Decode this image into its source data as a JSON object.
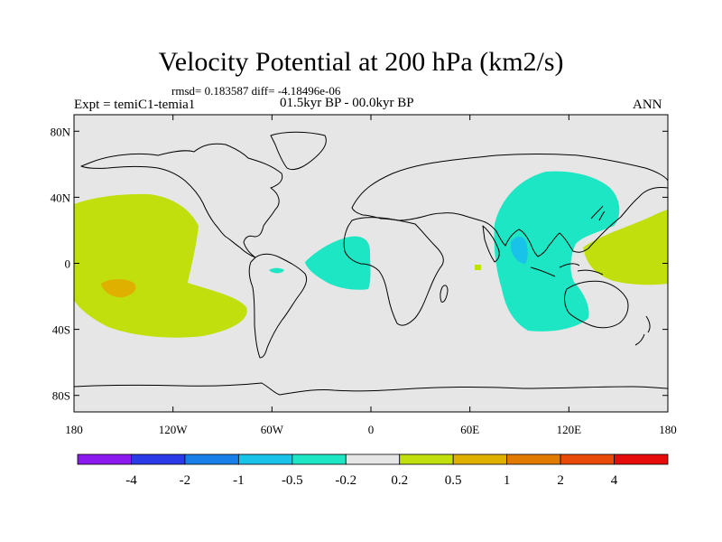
{
  "title": "Velocity Potential at 200 hPa (km2/s)",
  "stats": "rmsd= 0.183587  diff= -4.18496e-06",
  "left_label": "Expt = temiC1-temia1",
  "center_label": "01.5kyr BP - 00.0kyr BP",
  "right_label": "ANN",
  "map": {
    "projection": "cylindrical-equidistant",
    "lon_range": [
      -180,
      180
    ],
    "lat_range": [
      -90,
      90
    ],
    "background_color": "#e6e6e6",
    "x_ticks": [
      {
        "lon": -180,
        "label": "180"
      },
      {
        "lon": -120,
        "label": "120W"
      },
      {
        "lon": -60,
        "label": "60W"
      },
      {
        "lon": 0,
        "label": "0"
      },
      {
        "lon": 60,
        "label": "60E"
      },
      {
        "lon": 120,
        "label": "120E"
      },
      {
        "lon": 180,
        "label": "180"
      }
    ],
    "y_ticks": [
      {
        "lat": 80,
        "label": "80N"
      },
      {
        "lat": 40,
        "label": "40N"
      },
      {
        "lat": 0,
        "label": "0"
      },
      {
        "lat": -40,
        "label": "40S"
      },
      {
        "lat": -80,
        "label": "80S"
      }
    ]
  },
  "colorbar": {
    "colors": [
      "#8c1aef",
      "#2a3ae6",
      "#1a7ee8",
      "#19c2e8",
      "#1de6c4",
      "#e6e6e6",
      "#c0df0c",
      "#e0b000",
      "#e07a00",
      "#e84a0a",
      "#e60c0c"
    ],
    "labels": [
      "-4",
      "-2",
      "-1",
      "-0.5",
      "-0.2",
      "0.2",
      "0.5",
      "1",
      "2",
      "4"
    ]
  }
}
